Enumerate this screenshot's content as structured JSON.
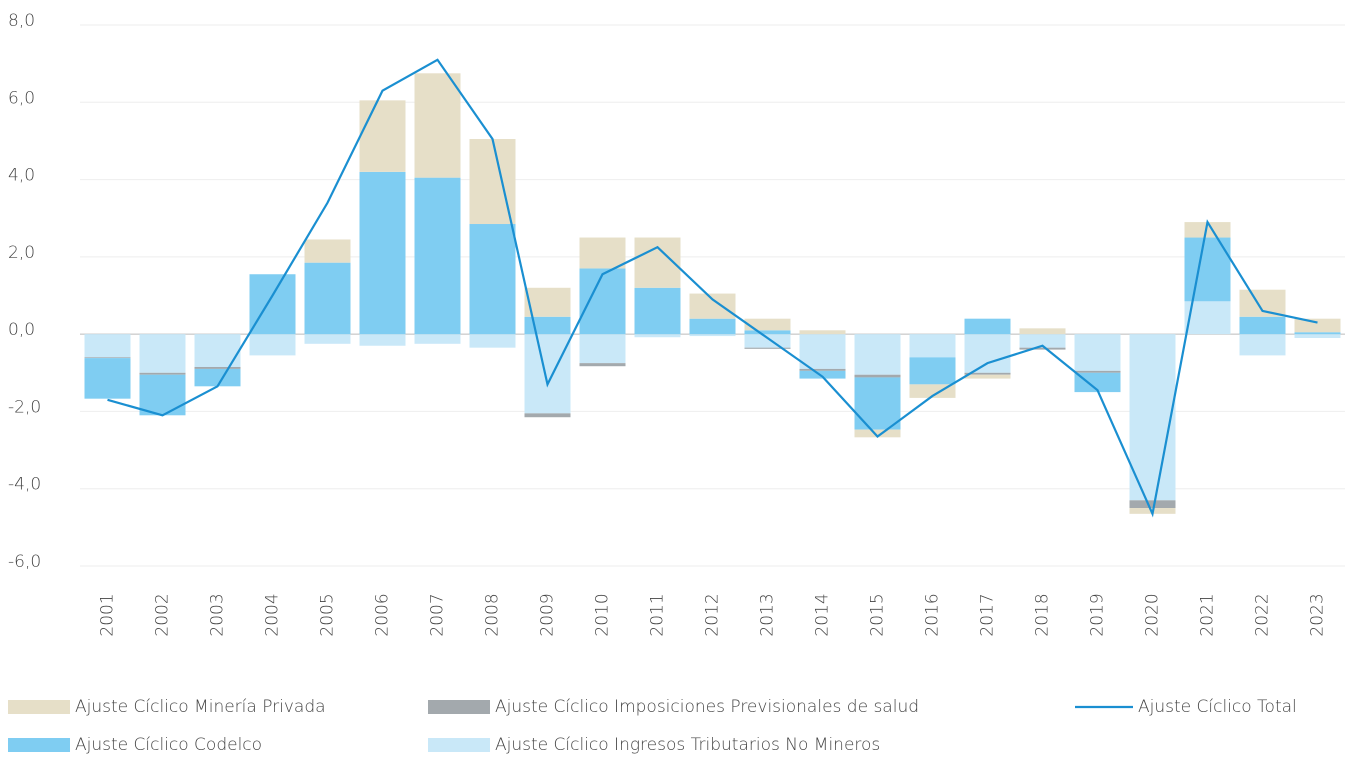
{
  "chart_data": {
    "type": "bar",
    "stacked": true,
    "categories": [
      "2001",
      "2002",
      "2003",
      "2004",
      "2005",
      "2006",
      "2007",
      "2008",
      "2009",
      "2010",
      "2011",
      "2012",
      "2013",
      "2014",
      "2015",
      "2016",
      "2017",
      "2018",
      "2019",
      "2020",
      "2021",
      "2022",
      "2023"
    ],
    "series": [
      {
        "name": "Ajuste Cíclico Minería Privada",
        "color": "#e6dfc8",
        "values": [
          0,
          0,
          0,
          0,
          0.6,
          1.85,
          2.7,
          2.2,
          0.75,
          0.8,
          1.3,
          0.65,
          0.3,
          0.1,
          -0.2,
          -0.35,
          -0.1,
          0.15,
          0,
          -0.15,
          0.4,
          0.7,
          0.35
        ]
      },
      {
        "name": "Ajuste Cíclico Codelco",
        "color": "#7fcdf2",
        "values": [
          -1.05,
          -1.05,
          -0.45,
          1.55,
          1.85,
          4.2,
          4.05,
          2.85,
          0.45,
          1.7,
          1.2,
          0.4,
          0.1,
          -0.2,
          -1.35,
          -0.7,
          0.4,
          0,
          -0.5,
          0,
          1.65,
          0.45,
          0.05
        ]
      },
      {
        "name": "Ajuste Cíclico Imposiciones Previsionales de salud",
        "color": "#a3a9ad",
        "values": [
          -0.02,
          -0.05,
          -0.05,
          0,
          0,
          0,
          0,
          0,
          -0.1,
          -0.08,
          0,
          0,
          -0.03,
          -0.05,
          -0.07,
          0,
          -0.05,
          -0.05,
          -0.05,
          -0.2,
          0,
          0,
          0
        ]
      },
      {
        "name": "Ajuste Cíclico Ingresos Tributarios No Mineros",
        "color": "#c9e8f8",
        "values": [
          -0.6,
          -1.0,
          -0.85,
          -0.55,
          -0.25,
          -0.3,
          -0.25,
          -0.35,
          -2.05,
          -0.75,
          -0.08,
          -0.05,
          -0.35,
          -0.9,
          -1.05,
          -0.6,
          -1.0,
          -0.35,
          -0.95,
          -4.3,
          0.85,
          -0.55,
          -0.1
        ]
      },
      {
        "name": "Ajuste Cíclico Total",
        "type": "line",
        "color": "#1a8fd1",
        "values": [
          -1.7,
          -2.1,
          -1.35,
          1.0,
          3.4,
          6.3,
          7.1,
          5.05,
          -1.3,
          1.55,
          2.25,
          0.9,
          -0.1,
          -1.1,
          -2.65,
          -1.6,
          -0.75,
          -0.3,
          -1.45,
          -4.65,
          2.9,
          0.6,
          0.3
        ]
      }
    ],
    "ylim": [
      -6,
      8
    ],
    "yticks": [
      {
        "value": -6,
        "label": "-6,0"
      },
      {
        "value": -4,
        "label": "-4,0"
      },
      {
        "value": -2,
        "label": "-2,0"
      },
      {
        "value": 0,
        "label": "0,0"
      },
      {
        "value": 2,
        "label": "2,0"
      },
      {
        "value": 4,
        "label": "4,0"
      },
      {
        "value": 6,
        "label": "6,0"
      },
      {
        "value": 8,
        "label": "8,0"
      }
    ],
    "grid": true
  }
}
